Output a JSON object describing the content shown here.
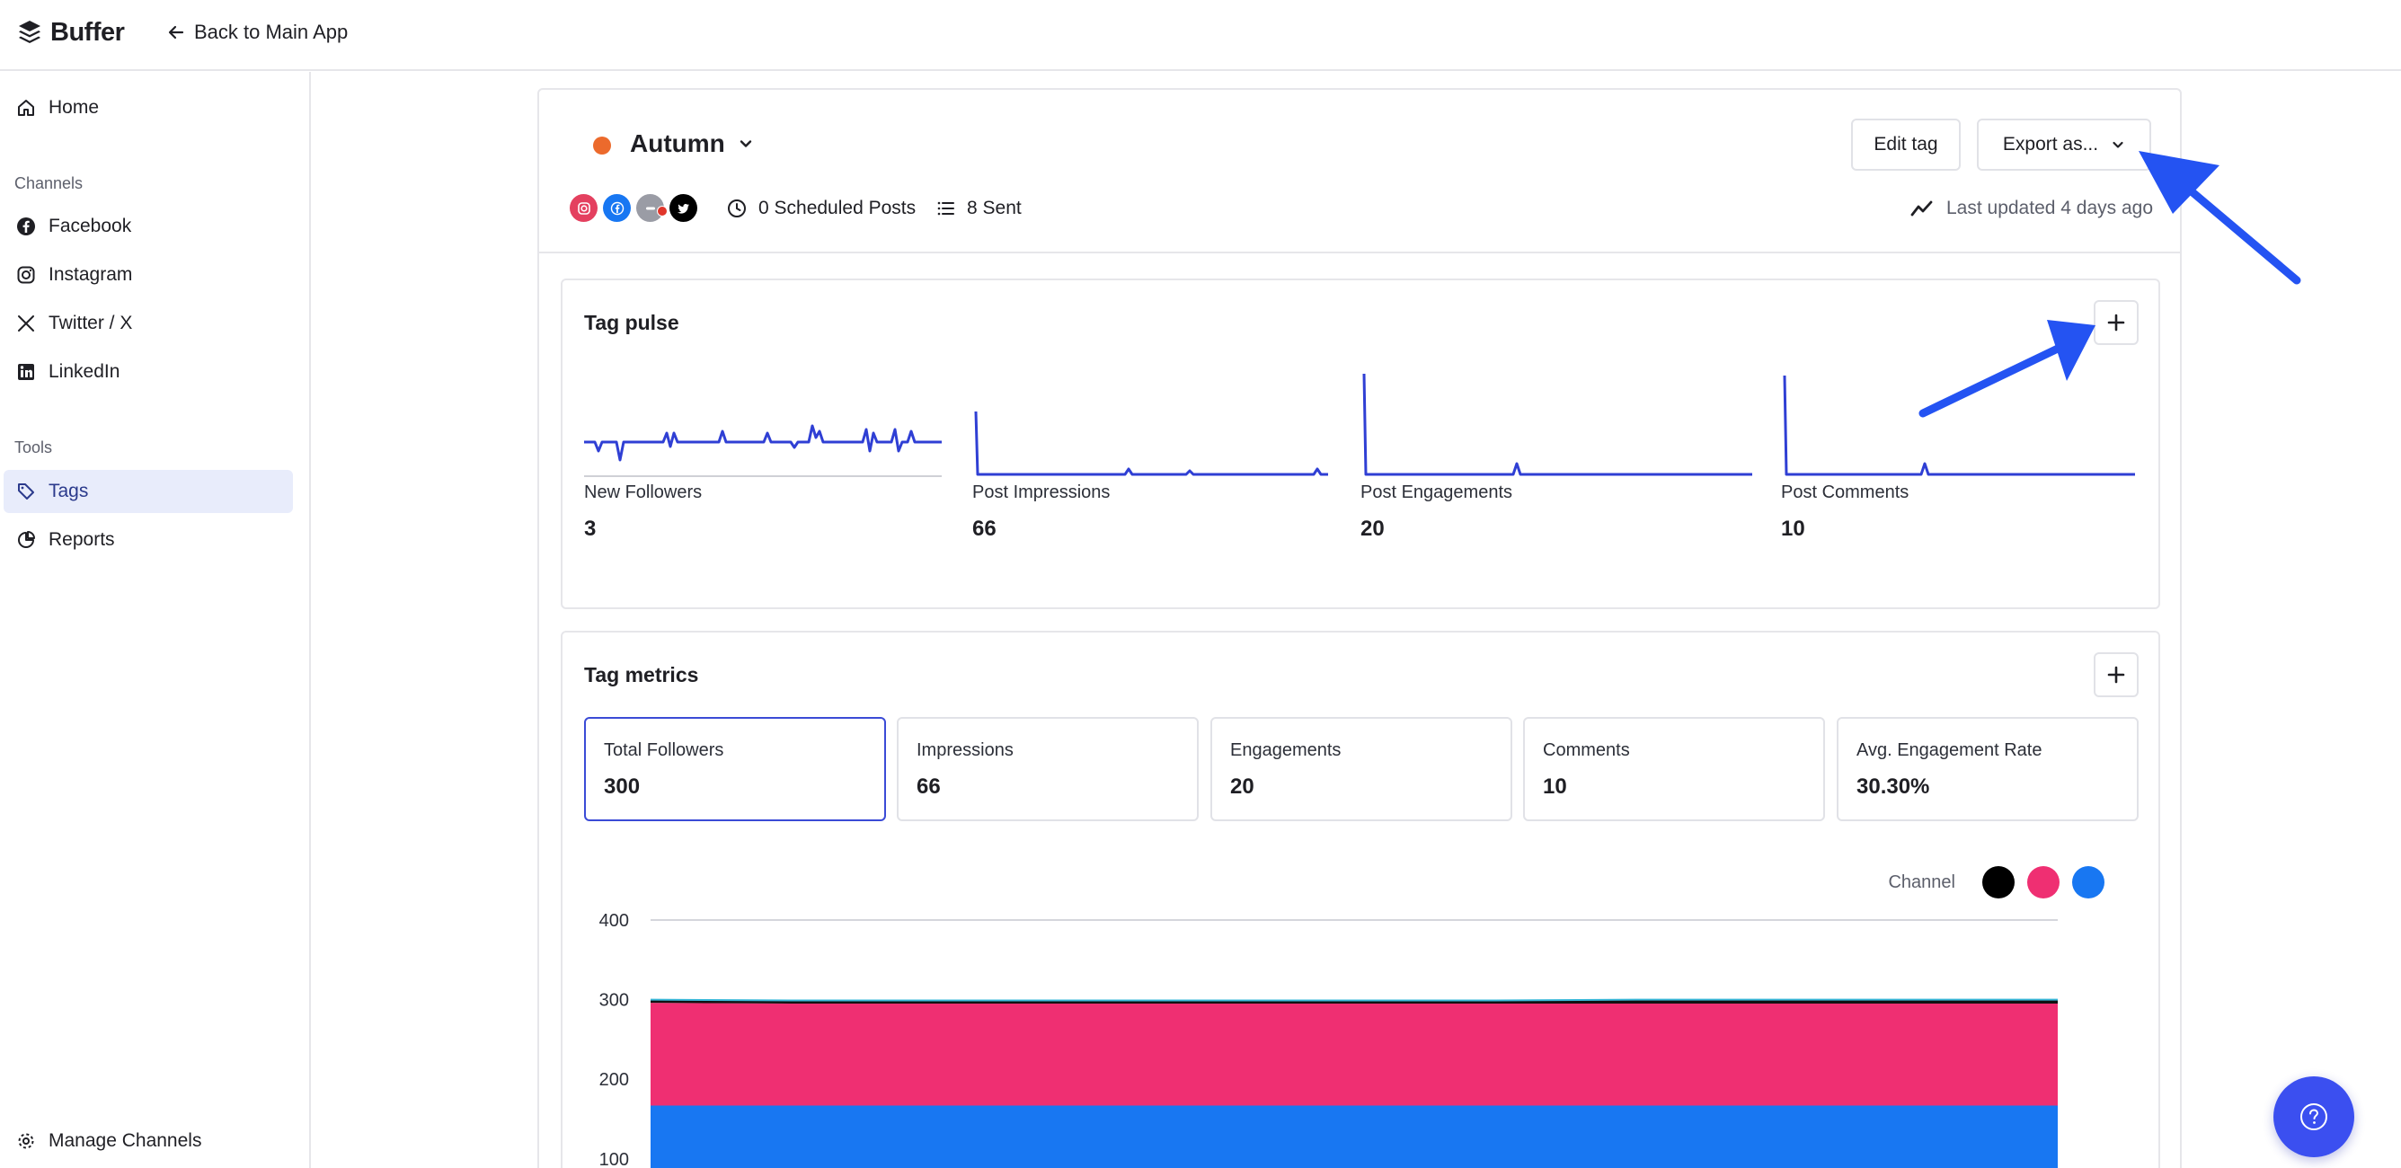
{
  "topbar": {
    "logo_text": "Buffer",
    "back_label": "Back to Main App"
  },
  "sidebar": {
    "home": "Home",
    "channels_heading": "Channels",
    "channels": [
      "Facebook",
      "Instagram",
      "Twitter / X",
      "LinkedIn"
    ],
    "tools_heading": "Tools",
    "tags": "Tags",
    "reports": "Reports",
    "manage_channels": "Manage Channels"
  },
  "tag": {
    "name": "Autumn",
    "color": "#ec6a2c",
    "scheduled": "0 Scheduled Posts",
    "sent": "8 Sent",
    "last_updated": "Last updated 4 days ago",
    "edit_label": "Edit tag",
    "export_label": "Export as..."
  },
  "pulse": {
    "title": "Tag pulse",
    "items": [
      {
        "label": "New Followers",
        "value": "3"
      },
      {
        "label": "Post Impressions",
        "value": "66"
      },
      {
        "label": "Post Engagements",
        "value": "20"
      },
      {
        "label": "Post Comments",
        "value": "10"
      }
    ]
  },
  "metrics": {
    "title": "Tag metrics",
    "items": [
      {
        "label": "Total Followers",
        "value": "300"
      },
      {
        "label": "Impressions",
        "value": "66"
      },
      {
        "label": "Engagements",
        "value": "20"
      },
      {
        "label": "Comments",
        "value": "10"
      },
      {
        "label": "Avg. Engagement Rate",
        "value": "30.30%"
      }
    ],
    "legend_label": "Channel",
    "legend_colors": [
      "#000000",
      "#ef2f72",
      "#1877f2"
    ]
  },
  "colors": {
    "accent": "#3b4bd6",
    "spark": "#2f3fd4",
    "instagram": "#e4405f",
    "facebook": "#1877f2",
    "twitter": "#000000"
  },
  "chart_data": {
    "type": "area",
    "ylim": [
      100,
      400
    ],
    "yticks": [
      "400",
      "300",
      "200",
      "100"
    ],
    "series": [
      {
        "values": [
          167,
          167,
          167,
          167,
          167,
          167,
          167,
          167,
          167,
          167,
          167
        ]
      },
      {
        "values": [
          129,
          128,
          128,
          128,
          128,
          128,
          128,
          128,
          128,
          128,
          128
        ]
      },
      {
        "values": [
          4,
          4,
          4,
          4,
          4,
          4,
          4,
          5,
          5,
          5,
          5
        ]
      }
    ],
    "grid": true
  }
}
